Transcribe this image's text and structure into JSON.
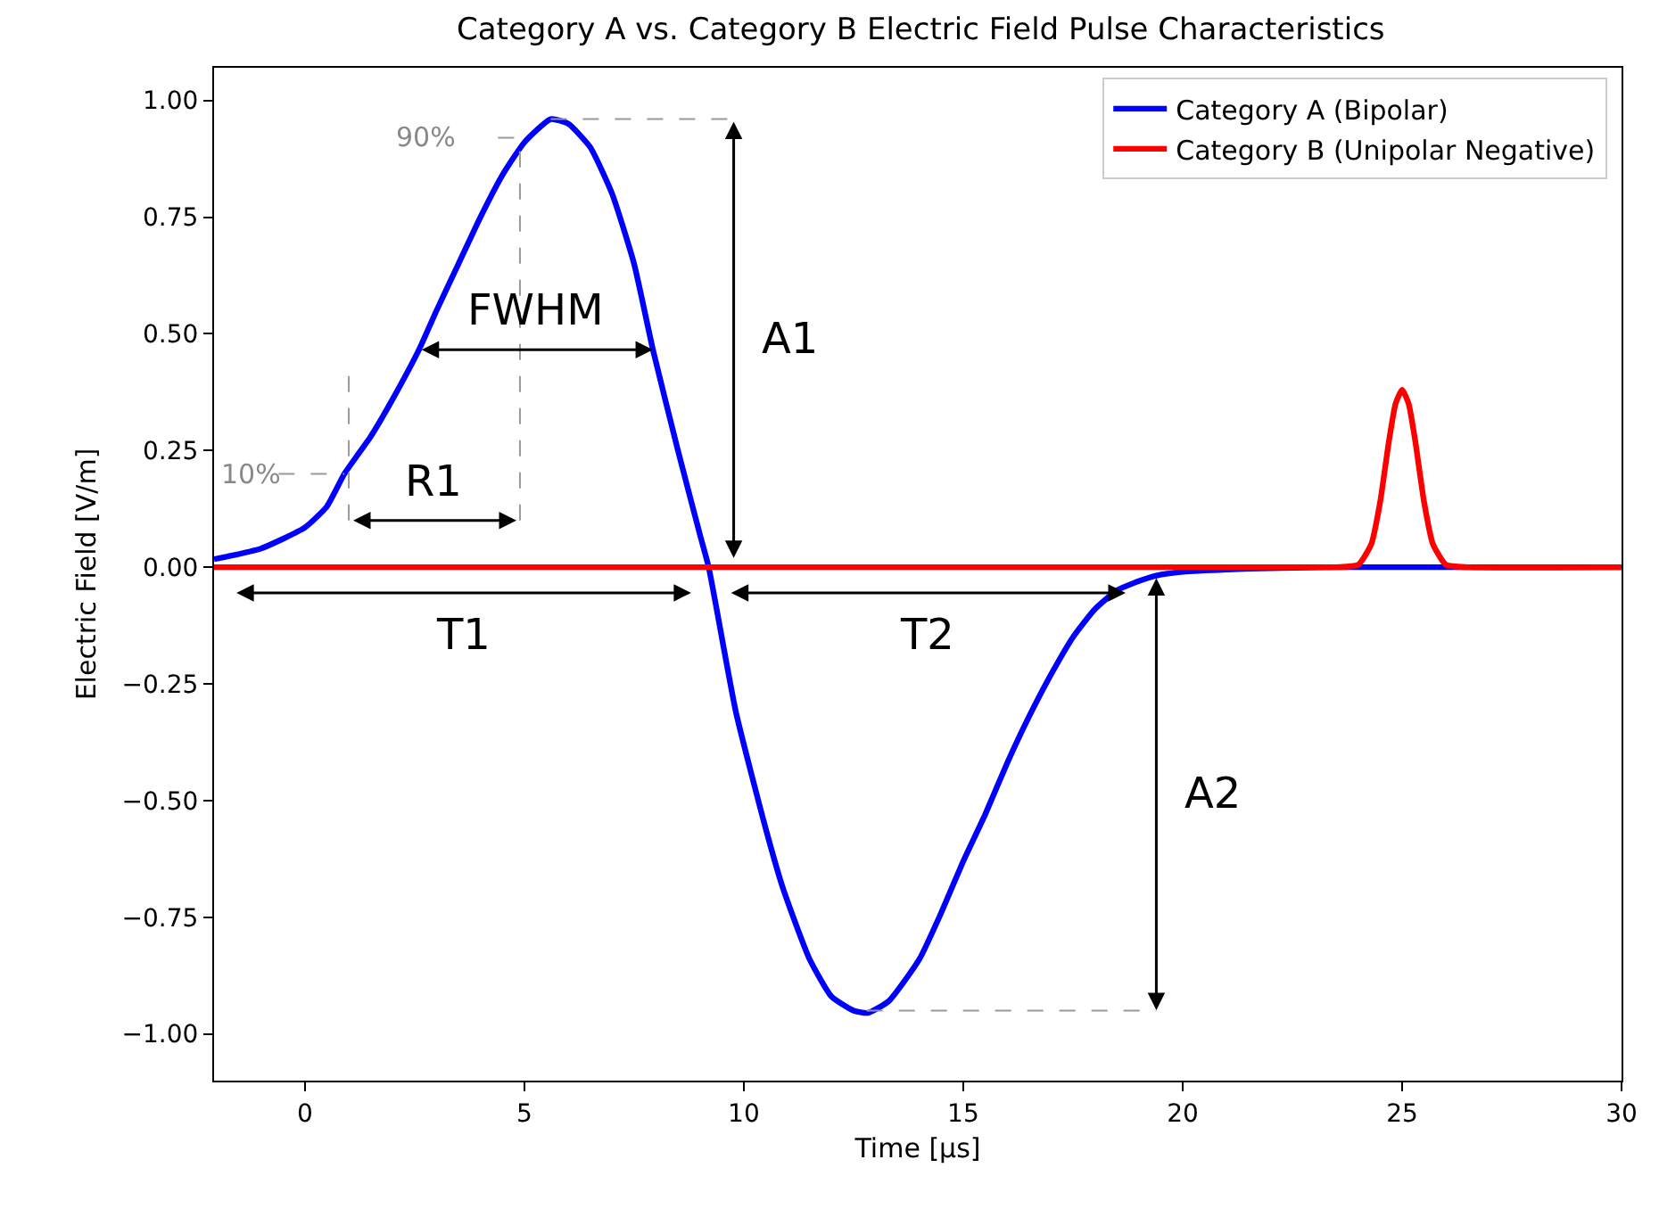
{
  "chart_data": {
    "type": "line",
    "title": "Category A vs. Category B Electric Field Pulse Characteristics",
    "xlabel": "Time [μs]",
    "ylabel": "Electric Field [V/m]",
    "xlim": [
      -2.07,
      30
    ],
    "ylim": [
      -1.1,
      1.07
    ],
    "xticks": [
      0,
      5,
      10,
      15,
      20,
      25,
      30
    ],
    "yticks": [
      {
        "value": -1,
        "label": "−1.00"
      },
      {
        "value": -0.75,
        "label": "−0.75"
      },
      {
        "value": -0.5,
        "label": "−0.50"
      },
      {
        "value": -0.25,
        "label": "−0.25"
      },
      {
        "value": 0,
        "label": "0.00"
      },
      {
        "value": 0.25,
        "label": "0.25"
      },
      {
        "value": 0.5,
        "label": "0.50"
      },
      {
        "value": 0.75,
        "label": "0.75"
      },
      {
        "value": 1,
        "label": "1.00"
      }
    ],
    "legend": "top right",
    "marker": "none",
    "line_style": "solid",
    "series": [
      {
        "name": "Category A (Bipolar)",
        "color": "#0000ff",
        "x": [
          -2.07,
          -1,
          0,
          0.5,
          0.9,
          1.5,
          2,
          2.6,
          3,
          3.5,
          4,
          4.5,
          5,
          5.6,
          6,
          6.5,
          7,
          7.5,
          7.93,
          8.5,
          9,
          9.2,
          9.82,
          10.5,
          10.9,
          11.5,
          12,
          12.5,
          12.82,
          13.3,
          14,
          14.5,
          15,
          15.5,
          16,
          16.5,
          17,
          17.5,
          18,
          18.5,
          19,
          19.4,
          20,
          21,
          22,
          23.5,
          25,
          30
        ],
        "values": [
          0.017,
          0.04,
          0.085,
          0.13,
          0.2,
          0.28,
          0.36,
          0.466,
          0.55,
          0.65,
          0.75,
          0.84,
          0.91,
          0.96,
          0.95,
          0.9,
          0.8,
          0.65,
          0.466,
          0.25,
          0.07,
          0.0,
          -0.31,
          -0.56,
          -0.69,
          -0.84,
          -0.92,
          -0.95,
          -0.955,
          -0.93,
          -0.84,
          -0.74,
          -0.63,
          -0.53,
          -0.42,
          -0.32,
          -0.23,
          -0.15,
          -0.09,
          -0.05,
          -0.03,
          -0.018,
          -0.01,
          -0.005,
          -0.002,
          0.0,
          0.0,
          0.0
        ]
      },
      {
        "name": "Category B (Unipolar Negative)",
        "color": "#ff0000",
        "x": [
          -2.07,
          23.5,
          24,
          24.3,
          24.5,
          24.7,
          24.85,
          25,
          25.15,
          25.3,
          25.5,
          25.7,
          26,
          26.5,
          30
        ],
        "values": [
          0,
          0,
          0.005,
          0.05,
          0.14,
          0.27,
          0.35,
          0.38,
          0.35,
          0.27,
          0.14,
          0.05,
          0.005,
          0,
          0
        ]
      },
      {
        "color": "#999999",
        "line_style": "dashed",
        "x": [
          -0.6,
          0.9,
          null,
          1.0,
          1.0,
          null,
          4.4,
          4.9,
          null,
          4.9,
          4.9,
          null,
          5.6,
          9.8,
          null,
          12.8,
          19.4
        ],
        "values": [
          0.2,
          0.2,
          null,
          0.1,
          0.42,
          null,
          0.92,
          0.92,
          null,
          0.1,
          0.92,
          null,
          0.96,
          0.96,
          null,
          -0.95,
          -0.95
        ]
      }
    ],
    "annotations": [
      {
        "text": "10%",
        "x": 0.9,
        "y": 0.2
      },
      {
        "text": "90%",
        "x": 4.9,
        "y": 0.92
      },
      "R1",
      "FWHM",
      "A1",
      "T1",
      "T2",
      "A2"
    ]
  }
}
